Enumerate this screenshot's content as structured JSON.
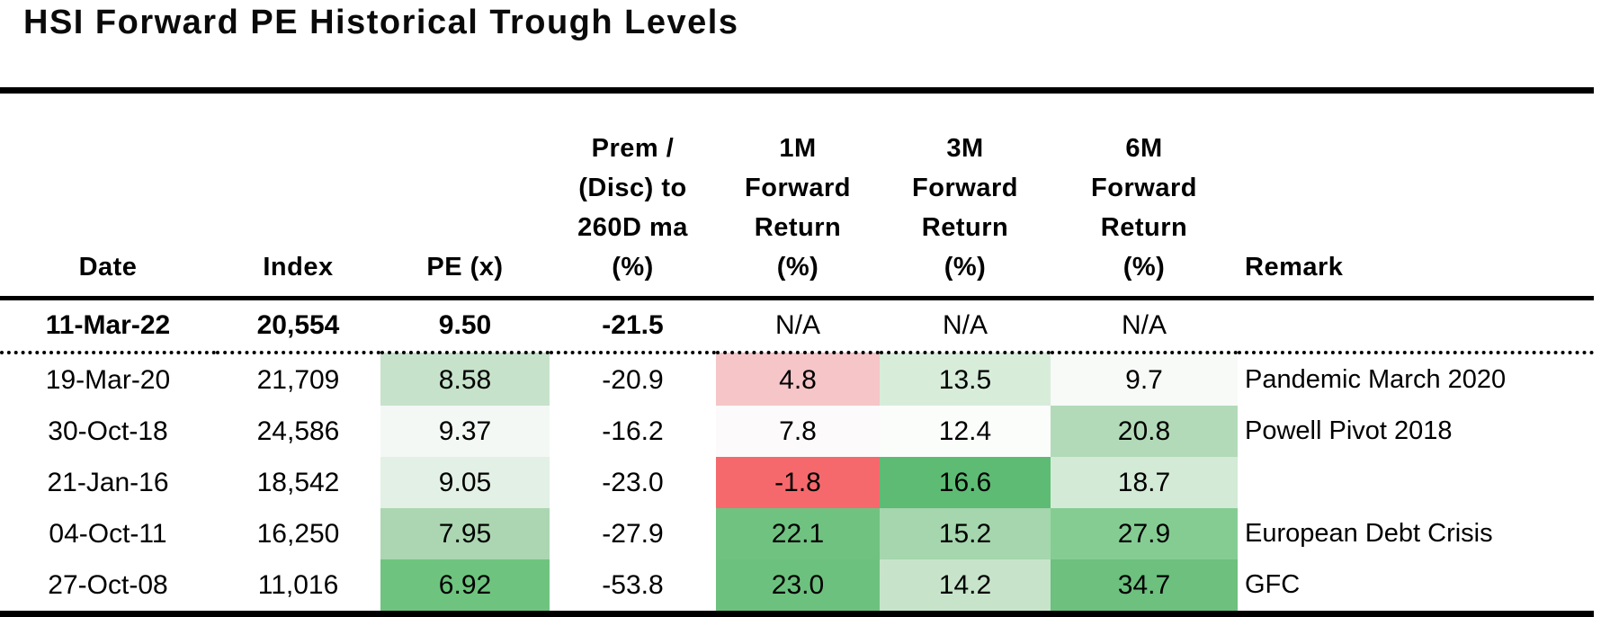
{
  "title": "HSI Forward PE Historical Trough Levels",
  "heatmap_palette": {
    "strong_green": "#6ec47f",
    "strong_red": "#f5696c",
    "neutral_white": "#fcfcfc"
  },
  "chart_data": {
    "type": "table",
    "title": "HSI Forward PE Historical Trough Levels",
    "columns": [
      "Date",
      "Index",
      "PE (x)",
      "Prem / (Disc) to 260D ma (%)",
      "1M Forward Return (%)",
      "3M Forward Return (%)",
      "6M Forward Return (%)",
      "Remark"
    ],
    "header_lines": {
      "date": [
        "Date"
      ],
      "index": [
        "Index"
      ],
      "pe": [
        "PE (x)"
      ],
      "prem": [
        "Prem /",
        "(Disc) to",
        "260D ma",
        "(%)"
      ],
      "fwd1m": [
        "1M",
        "Forward",
        "Return",
        "(%)"
      ],
      "fwd3m": [
        "3M",
        "Forward",
        "Return",
        "(%)"
      ],
      "fwd6m": [
        "6M",
        "Forward",
        "Return",
        "(%)"
      ],
      "remark": [
        "Remark"
      ]
    },
    "current_row": {
      "date": "11-Mar-22",
      "index": "20,554",
      "pe": "9.50",
      "prem": "-21.5",
      "fwd1m": "N/A",
      "fwd3m": "N/A",
      "fwd6m": "N/A",
      "remark": ""
    },
    "rows": [
      {
        "date": "19-Mar-20",
        "index": "21,709",
        "pe": "8.58",
        "prem": "-20.9",
        "fwd1m": "4.8",
        "fwd3m": "13.5",
        "fwd6m": "9.7",
        "remark": "Pandemic March 2020",
        "pe_bg": "#c7e2ca",
        "fwd1m_bg": "#f5c5c7",
        "fwd3m_bg": "#d8ecda",
        "fwd6m_bg": "#f7faf7"
      },
      {
        "date": "30-Oct-18",
        "index": "24,586",
        "pe": "9.37",
        "prem": "-16.2",
        "fwd1m": "7.8",
        "fwd3m": "12.4",
        "fwd6m": "20.8",
        "remark": "Powell Pivot 2018",
        "pe_bg": "#f3f8f4",
        "fwd1m_bg": "#fcfafa",
        "fwd3m_bg": "#fbfdfb",
        "fwd6m_bg": "#b3dab8"
      },
      {
        "date": "21-Jan-16",
        "index": "18,542",
        "pe": "9.05",
        "prem": "-23.0",
        "fwd1m": "-1.8",
        "fwd3m": "16.6",
        "fwd6m": "18.7",
        "remark": "",
        "pe_bg": "#e3f0e5",
        "fwd1m_bg": "#f5696c",
        "fwd3m_bg": "#5ebb74",
        "fwd6m_bg": "#d3ead6"
      },
      {
        "date": "04-Oct-11",
        "index": "16,250",
        "pe": "7.95",
        "prem": "-27.9",
        "fwd1m": "22.1",
        "fwd3m": "15.2",
        "fwd6m": "27.9",
        "remark": "European Debt Crisis",
        "pe_bg": "#abd6b1",
        "fwd1m_bg": "#70c281",
        "fwd3m_bg": "#a5d6ad",
        "fwd6m_bg": "#85cc93"
      },
      {
        "date": "27-Oct-08",
        "index": "11,016",
        "pe": "6.92",
        "prem": "-53.8",
        "fwd1m": "23.0",
        "fwd3m": "14.2",
        "fwd6m": "34.7",
        "remark": "GFC",
        "pe_bg": "#6ec47f",
        "fwd1m_bg": "#6dc17e",
        "fwd3m_bg": "#c7e4ca",
        "fwd6m_bg": "#6dc07e"
      }
    ]
  }
}
